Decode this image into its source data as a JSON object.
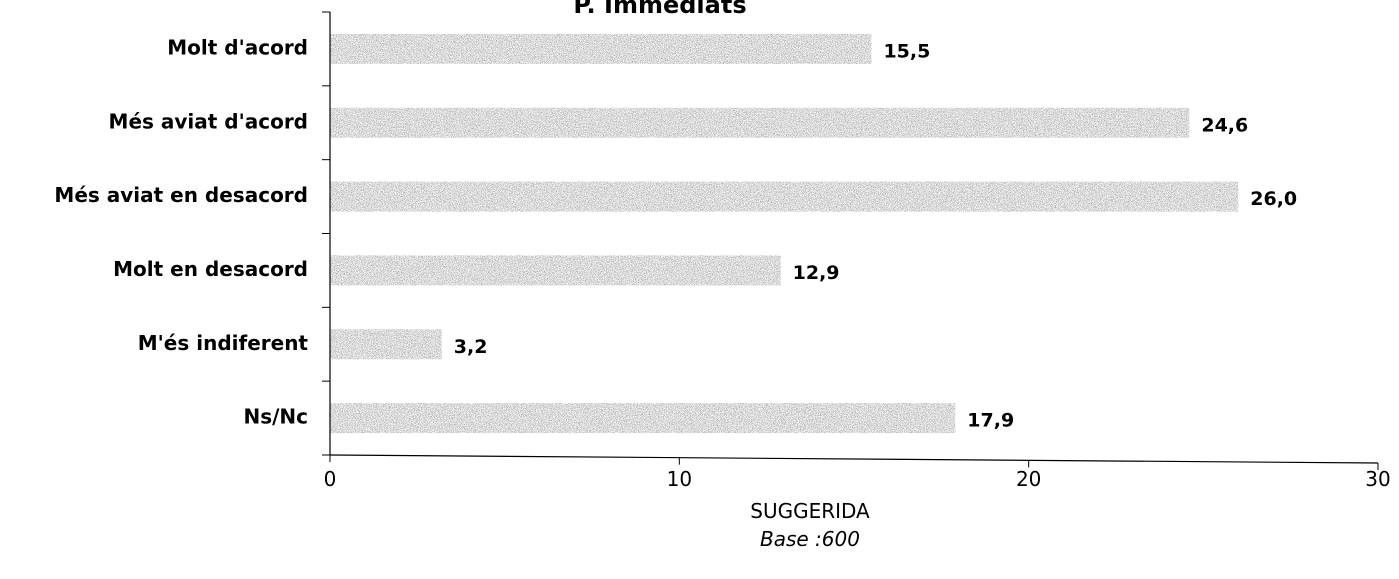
{
  "chart_data": {
    "type": "bar",
    "orientation": "horizontal",
    "title": "P. Immediats",
    "categories": [
      "Molt d'acord",
      "Més aviat d'acord",
      "Més aviat en desacord",
      "Molt en desacord",
      "M'és indiferent",
      "Ns/Nc"
    ],
    "values": [
      15.5,
      24.6,
      26.0,
      12.9,
      3.2,
      17.9
    ],
    "value_labels": [
      "15,5",
      "24,6",
      "26,0",
      "12,9",
      "3,2",
      "17,9"
    ],
    "xlim": [
      0,
      30
    ],
    "x_ticks": [
      0,
      10,
      20,
      30
    ],
    "xlabel": "SUGGERIDA",
    "xlabel_sub": "Base :600",
    "bar_color": "#7a7a7a",
    "grid": false,
    "legend": "none"
  }
}
